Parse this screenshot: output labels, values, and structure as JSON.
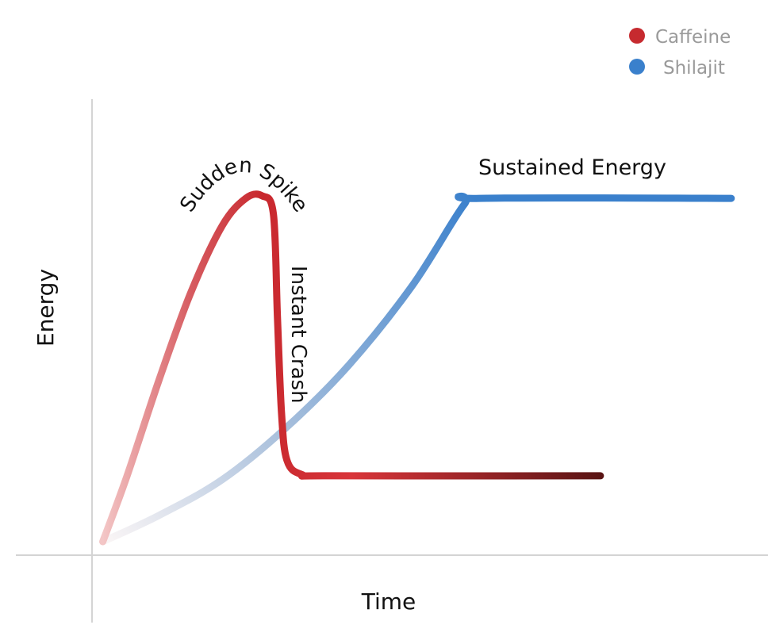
{
  "chart_data": {
    "type": "line",
    "title": "",
    "xlabel": "Time",
    "ylabel": "Energy",
    "xlim": [
      0,
      100
    ],
    "ylim": [
      0,
      100
    ],
    "grid": false,
    "axis_ticks": false,
    "legend_placement": "top-right",
    "series": [
      {
        "name": "Caffeine",
        "color": "#c62a2f",
        "gradient": [
          "#f3c6c6",
          "#d65a5f",
          "#c8282e",
          "#d8353a",
          "#5a1414"
        ],
        "points": [
          [
            1.6,
            3.1
          ],
          [
            5.2,
            18.2
          ],
          [
            9.9,
            40.0
          ],
          [
            14.6,
            60.0
          ],
          [
            19.3,
            75.5
          ],
          [
            22.8,
            81.8
          ],
          [
            25.2,
            82.4
          ],
          [
            26.9,
            78.2
          ],
          [
            27.5,
            54.5
          ],
          [
            28.1,
            32.7
          ],
          [
            28.9,
            21.8
          ],
          [
            31.1,
            18.5
          ],
          [
            35.8,
            18.2
          ],
          [
            75.4,
            18.2
          ]
        ]
      },
      {
        "name": "Shilajit",
        "color": "#3a80cc",
        "gradient": [
          "#fbf6f6",
          "#a9c0dc",
          "#3a80cc"
        ],
        "points": [
          [
            1.6,
            3.1
          ],
          [
            9.9,
            9.1
          ],
          [
            19.3,
            17.3
          ],
          [
            28.7,
            29.1
          ],
          [
            38.1,
            43.6
          ],
          [
            47.5,
            61.8
          ],
          [
            55.2,
            80.4
          ],
          [
            57.5,
            81.8
          ],
          [
            94.8,
            81.8
          ]
        ]
      }
    ],
    "annotations": {
      "spike": "Sudden Spike",
      "crash": "Instant Crash",
      "sustained": "Sustained Energy"
    }
  }
}
